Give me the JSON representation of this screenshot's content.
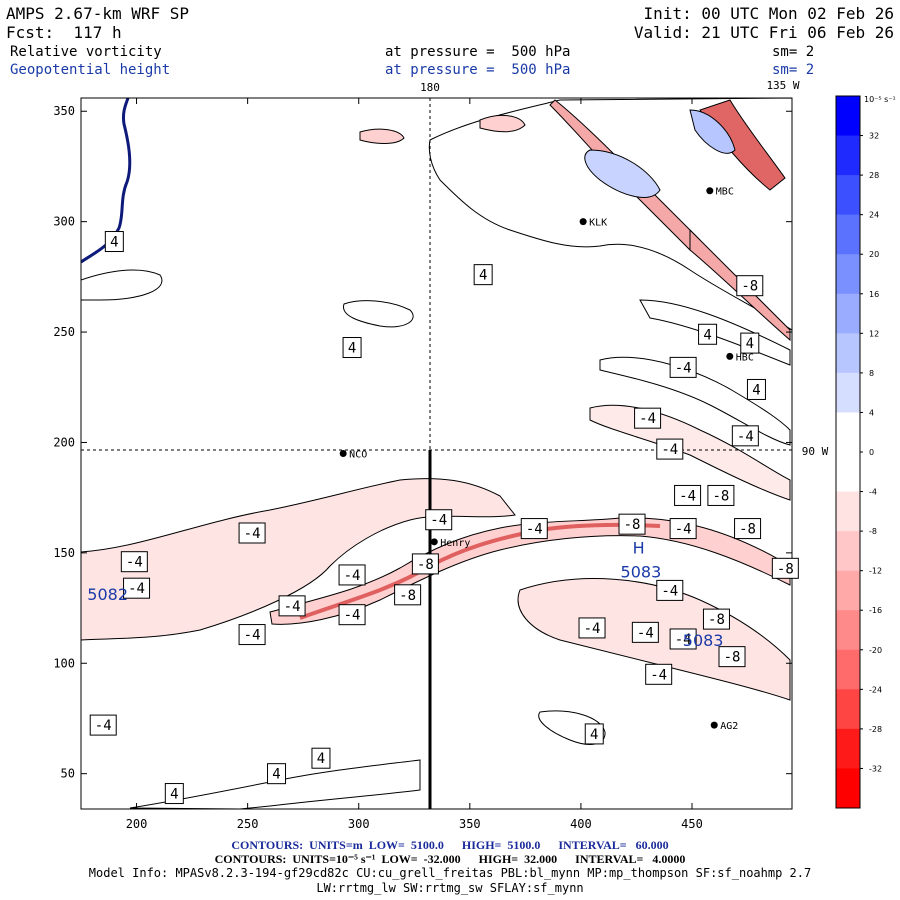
{
  "header": {
    "model_line": "AMPS 2.67-km WRF SP",
    "forecast_line": "Fcst:  117 h",
    "init_line": "Init: 00 UTC Mon 02 Feb 26",
    "valid_line": "Valid: 21 UTC Fri 06 Feb 26",
    "field1_name": "Relative vorticity",
    "field1_level": "at pressure =  500 hPa",
    "field1_sm": "sm= 2",
    "field2_name": "Geopotential height",
    "field2_level": "at pressure =  500 hPa",
    "field2_sm": "sm= 2"
  },
  "chart_data": {
    "type": "contour-map",
    "x_ticks": [
      "200",
      "250",
      "300",
      "350",
      "400",
      "450"
    ],
    "y_ticks": [
      "50",
      "100",
      "150",
      "200",
      "250",
      "300",
      "350"
    ],
    "xlim": [
      175,
      495
    ],
    "ylim": [
      34,
      356
    ],
    "meridian_labels": [
      "180",
      "135 W",
      "90 W"
    ],
    "stations": [
      {
        "name": "NCO",
        "x": 293,
        "y": 195
      },
      {
        "name": "Henry",
        "x": 334,
        "y": 155
      },
      {
        "name": "AG2",
        "x": 460,
        "y": 72
      },
      {
        "name": "KLK",
        "x": 401,
        "y": 300
      },
      {
        "name": "HBC",
        "x": 467,
        "y": 239
      },
      {
        "name": "MBC",
        "x": 458,
        "y": 314
      }
    ],
    "vorticity_labels": [
      {
        "text": "4",
        "x": 190,
        "y": 291
      },
      {
        "text": "4",
        "x": 297,
        "y": 243
      },
      {
        "text": "4",
        "x": 356,
        "y": 276
      },
      {
        "text": "4",
        "x": 457,
        "y": 249
      },
      {
        "text": "4",
        "x": 476,
        "y": 245
      },
      {
        "text": "4",
        "x": 479,
        "y": 224
      },
      {
        "text": "-4",
        "x": 430,
        "y": 211
      },
      {
        "text": "-4",
        "x": 446,
        "y": 234
      },
      {
        "text": "-4",
        "x": 474,
        "y": 203
      },
      {
        "text": "-4",
        "x": 440,
        "y": 197
      },
      {
        "text": "-4",
        "x": 448,
        "y": 176
      },
      {
        "text": "-4",
        "x": 336,
        "y": 165
      },
      {
        "text": "-4",
        "x": 379,
        "y": 161
      },
      {
        "text": "-4",
        "x": 446,
        "y": 161
      },
      {
        "text": "-4",
        "x": 252,
        "y": 159
      },
      {
        "text": "-4",
        "x": 199,
        "y": 146
      },
      {
        "text": "-4",
        "x": 297,
        "y": 140
      },
      {
        "text": "-4",
        "x": 200,
        "y": 134
      },
      {
        "text": "-4",
        "x": 270,
        "y": 126
      },
      {
        "text": "-4",
        "x": 297,
        "y": 122
      },
      {
        "text": "-4",
        "x": 252,
        "y": 113
      },
      {
        "text": "-4",
        "x": 440,
        "y": 133
      },
      {
        "text": "-4",
        "x": 405,
        "y": 116
      },
      {
        "text": "-4",
        "x": 429,
        "y": 114
      },
      {
        "text": "-4",
        "x": 446,
        "y": 111
      },
      {
        "text": "-4",
        "x": 435,
        "y": 95
      },
      {
        "text": "-4",
        "x": 185,
        "y": 72
      },
      {
        "text": "-8",
        "x": 476,
        "y": 271
      },
      {
        "text": "-8",
        "x": 423,
        "y": 163
      },
      {
        "text": "-8",
        "x": 475,
        "y": 161
      },
      {
        "text": "-8",
        "x": 330,
        "y": 145
      },
      {
        "text": "-8",
        "x": 322,
        "y": 131
      },
      {
        "text": "-8",
        "x": 461,
        "y": 120
      },
      {
        "text": "-8",
        "x": 468,
        "y": 103
      },
      {
        "text": "-8",
        "x": 492,
        "y": 143
      },
      {
        "text": "-8",
        "x": 463,
        "y": 176
      },
      {
        "text": "4",
        "x": 406,
        "y": 68
      },
      {
        "text": "4",
        "x": 283,
        "y": 57
      },
      {
        "text": "4",
        "x": 263,
        "y": 50
      },
      {
        "text": "4",
        "x": 217,
        "y": 41
      }
    ],
    "height_labels": [
      {
        "text": "5082",
        "x": 187,
        "y": 131
      },
      {
        "text": "5083",
        "x": 427,
        "y": 141
      },
      {
        "text": "5083",
        "x": 455,
        "y": 110
      },
      {
        "text": "H",
        "x": 426,
        "y": 152
      }
    ],
    "colorbar": {
      "unit_label": "10⁻⁵ s⁻¹",
      "levels": [
        "32",
        "28",
        "24",
        "20",
        "16",
        "12",
        "8",
        "4",
        "0",
        "-4",
        "-8",
        "-12",
        "-16",
        "-20",
        "-24",
        "-28",
        "-32"
      ],
      "colors": [
        "#0000ff",
        "#1f2aff",
        "#3d50ff",
        "#5b72ff",
        "#7b90ff",
        "#9aacff",
        "#b8c6ff",
        "#d6deff",
        "#ffffff",
        "#ffffff",
        "#ffe3e3",
        "#ffc7c7",
        "#ffa9a9",
        "#ff8a8a",
        "#ff6a6a",
        "#ff4444",
        "#ff1a1a",
        "#ff0000"
      ]
    }
  },
  "footer": {
    "line1": "CONTOURS:  UNITS=m  LOW=  5100.0      HIGH=  5100.0      INTERVAL=   60.000",
    "line2": "CONTOURS:  UNITS=10⁻⁵ s⁻¹  LOW=  -32.000      HIGH=  32.000      INTERVAL=   4.0000",
    "line3": "Model Info: MPASv8.2.3-194-gf29cd82c CU:cu_grell_freitas PBL:bl_mynn MP:mp_thompson SF:sf_noahmp 2.7",
    "line4": "LW:rrtmg_lw SW:rrtmg_sw SFLAY:sf_mynn"
  }
}
